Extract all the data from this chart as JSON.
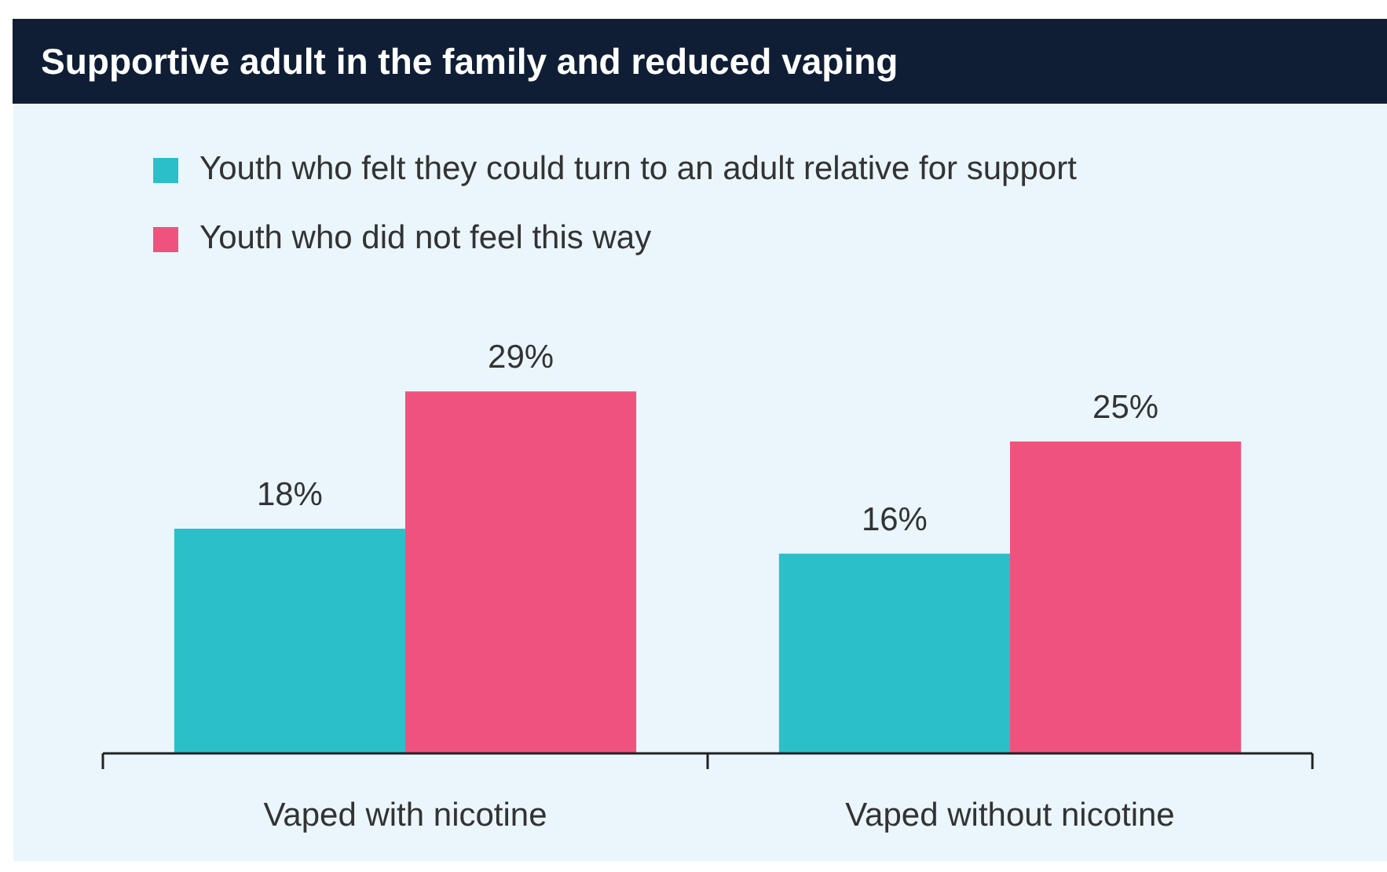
{
  "chart_data": {
    "type": "bar",
    "title": "Supportive adult in the family and reduced vaping",
    "categories": [
      "Vaped with nicotine",
      "Vaped without nicotine"
    ],
    "series": [
      {
        "name": "Youth who felt they could turn to an adult relative for support",
        "color": "#2bbfca",
        "values": [
          18,
          16
        ],
        "value_labels": [
          "18%",
          "16%"
        ]
      },
      {
        "name": "Youth who did not feel this way",
        "color": "#f0527e",
        "values": [
          29,
          25
        ],
        "value_labels": [
          "29%",
          "25%"
        ]
      }
    ],
    "ylim": [
      0,
      52
    ],
    "tick_labels": "x",
    "legend": "top left"
  }
}
